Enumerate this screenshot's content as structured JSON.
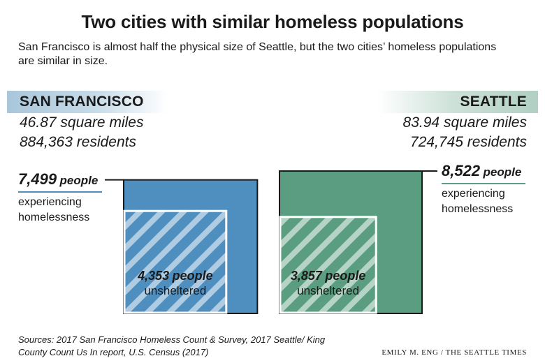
{
  "title": "Two cities with similar homeless populations",
  "subtitle": "San Francisco is almost half the physical size of Seattle, but the two cities’ homeless populations are similar in size.",
  "colors": {
    "sf_fill": "#4f8fc0",
    "seattle_fill": "#5a9d80",
    "sf_underline": "#4f8fc0",
    "seattle_underline": "#5a9d80",
    "sf_band": "#a9c6da",
    "seattle_band": "#b1cfc3"
  },
  "cities": [
    {
      "name": "SAN FRANCISCO",
      "area": "46.87",
      "area_unit": "square miles",
      "residents": "884,363",
      "residents_unit": "residents",
      "homeless_total": "7,499",
      "homeless_total_unit": "people",
      "homeless_label_1": "experiencing",
      "homeless_label_2": "homelessness",
      "unsheltered": "4,353",
      "unsheltered_unit": "people",
      "unsheltered_label": "unsheltered"
    },
    {
      "name": "SEATTLE",
      "area": "83.94",
      "area_unit": "square miles",
      "residents": "724,745",
      "residents_unit": "residents",
      "homeless_total": "8,522",
      "homeless_total_unit": "people",
      "homeless_label_1": "experiencing",
      "homeless_label_2": "homelessness",
      "unsheltered": "3,857",
      "unsheltered_unit": "people",
      "unsheltered_label": "unsheltered"
    }
  ],
  "chart_data": {
    "type": "area",
    "categories": [
      "SAN FRANCISCO",
      "SEATTLE"
    ],
    "series": [
      {
        "name": "experiencing homelessness",
        "values": [
          7499,
          8522
        ]
      },
      {
        "name": "unsheltered",
        "values": [
          4353,
          3857
        ]
      }
    ]
  },
  "source": "Sources: 2017 San Francisco Homeless Count & Survey, 2017 Seattle/ King County Count Us In report, U.S. Census (2017)",
  "credit": "EMILY M. ENG / THE SEATTLE TIMES"
}
